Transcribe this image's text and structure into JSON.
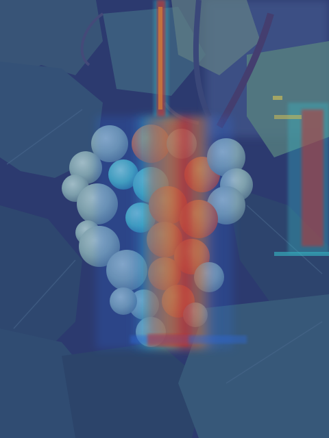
{
  "image": {
    "subject": "",
    "overlay": "",
    "palette": {
      "background_blue": "#2a3560",
      "leaf_dark": "#2f4a66",
      "leaf_mid": "#3d6a7a",
      "leaf_light": "#5f8e7a",
      "grape": "#8fb5b0",
      "heat_red": "#e0301e",
      "heat_orange": "#f08a24",
      "heat_yellow": "#e9d44a",
      "heat_cyan": "#39d6d1"
    }
  }
}
